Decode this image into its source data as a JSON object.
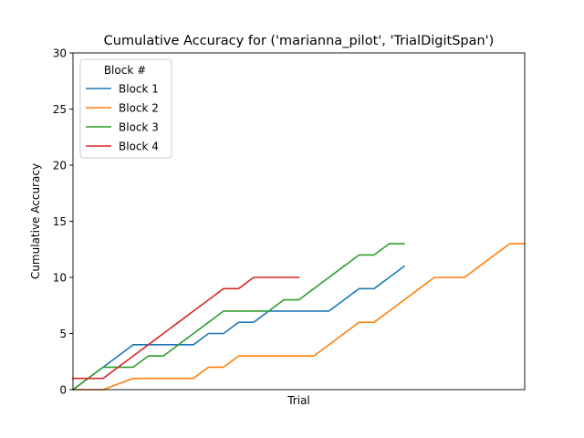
{
  "chart_data": {
    "type": "line",
    "title": "Cumulative Accuracy for ('marianna_pilot', 'TrialDigitSpan')",
    "xlabel": "Trial",
    "ylabel": "Cumulative Accuracy",
    "xlim": [
      0,
      30
    ],
    "ylim": [
      0,
      30
    ],
    "yticks": [
      0,
      5,
      10,
      15,
      20,
      25,
      30
    ],
    "grid": false,
    "legend": {
      "title": "Block #",
      "position": "top-left"
    },
    "series": [
      {
        "name": "Block 1",
        "color": "#1f77b4",
        "x": [
          0,
          2,
          4,
          5,
          6,
          7,
          8,
          9,
          10,
          11,
          12,
          13,
          14,
          15,
          16,
          17,
          18,
          19,
          20,
          21,
          22
        ],
        "y": [
          0,
          2,
          4,
          4,
          4,
          4,
          4,
          5,
          5,
          6,
          6,
          7,
          7,
          7,
          7,
          7,
          8,
          9,
          9,
          10,
          11
        ]
      },
      {
        "name": "Block 2",
        "color": "#ff7f0e",
        "x": [
          0,
          2,
          4,
          5,
          6,
          7,
          8,
          9,
          10,
          11,
          12,
          13,
          14,
          15,
          16,
          17,
          18,
          19,
          20,
          21,
          22,
          23,
          24,
          25,
          26,
          27,
          28,
          29,
          30
        ],
        "y": [
          0,
          0,
          1,
          1,
          1,
          1,
          1,
          2,
          2,
          3,
          3,
          3,
          3,
          3,
          3,
          4,
          5,
          6,
          6,
          7,
          8,
          9,
          10,
          10,
          10,
          11,
          12,
          13,
          13
        ]
      },
      {
        "name": "Block 3",
        "color": "#2ca02c",
        "x": [
          0,
          2,
          3,
          4,
          5,
          6,
          7,
          8,
          9,
          10,
          11,
          12,
          13,
          14,
          15,
          16,
          17,
          18,
          19,
          20,
          21,
          22
        ],
        "y": [
          0,
          2,
          2,
          2,
          3,
          3,
          4,
          5,
          6,
          7,
          7,
          7,
          7,
          8,
          8,
          9,
          10,
          11,
          12,
          12,
          13,
          13
        ]
      },
      {
        "name": "Block 4",
        "color": "#d62728",
        "x": [
          0,
          1,
          2,
          3,
          4,
          5,
          6,
          7,
          8,
          9,
          10,
          11,
          12,
          13,
          14,
          15
        ],
        "y": [
          1,
          1,
          1,
          2,
          3,
          4,
          5,
          6,
          7,
          8,
          9,
          9,
          10,
          10,
          10,
          10
        ]
      }
    ]
  }
}
